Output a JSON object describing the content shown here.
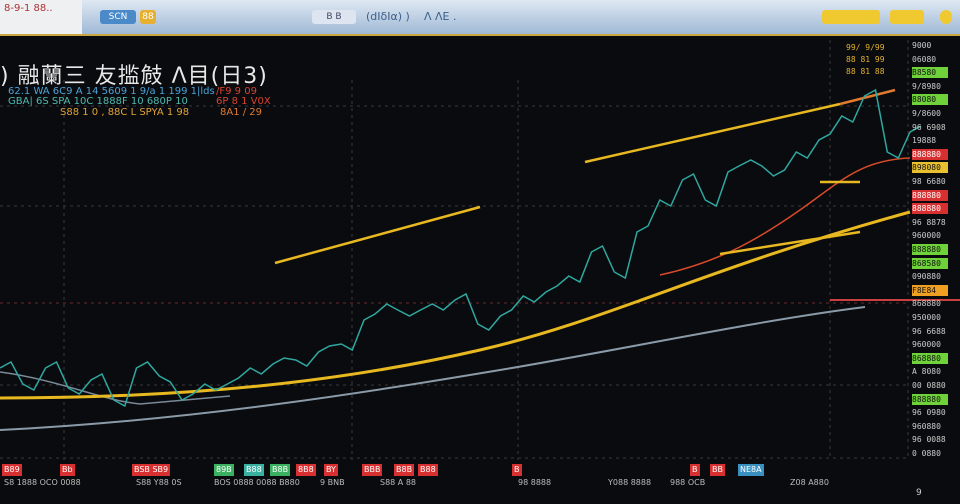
{
  "toolbar": {
    "corner_text": "8-9-1 88..",
    "items": [
      "SCN",
      "88",
      "B B",
      "(dΙδΙα) )",
      "Λ ΛΕ ."
    ],
    "buttons": [
      "",
      ""
    ]
  },
  "header": {
    "title": ") 融蘭三 友㨫㩻 Λ目(日3)",
    "sub_lines": [
      {
        "text": "62.1 WA 6C9 A 14 5609 1  9/a 1 199 1|lds",
        "color": "#4aa3d8"
      },
      {
        "text": "GBA| 6S  SPA 10C 1888F 10 680P 10",
        "color": "#4fb9b0"
      },
      {
        "text": "S88 1 0 ,  88C L SPYA 1 98",
        "color": "#e0a23a"
      }
    ],
    "sub_right": [
      {
        "text": "/F9 9 09",
        "color": "#d9432f"
      },
      {
        "text": "6P 8 1 V0X",
        "color": "#d9432f"
      },
      {
        "text": "8A1 / 29",
        "color": "#e07a30"
      }
    ]
  },
  "right_panel": {
    "labels": [
      {
        "text": "99/ 9/99",
        "color": "#e0b030",
        "bg": ""
      },
      {
        "text": "88 81 99",
        "color": "#e0b030",
        "bg": ""
      },
      {
        "text": "88 81 88",
        "color": "#e0b030",
        "bg": ""
      },
      {
        "text": "9000",
        "color": "#ccc",
        "bg": ""
      },
      {
        "text": "06080",
        "color": "#ccc",
        "bg": ""
      },
      {
        "text": "B8580",
        "color": "#111",
        "bg": "#6fd23a"
      },
      {
        "text": "9/8980",
        "color": "#ccc",
        "bg": ""
      },
      {
        "text": "88080",
        "color": "#111",
        "bg": "#6fd23a"
      },
      {
        "text": "9/8600",
        "color": "#ccc",
        "bg": ""
      },
      {
        "text": "96 6908",
        "color": "#ccc",
        "bg": ""
      },
      {
        "text": "19888",
        "color": "#ccc",
        "bg": ""
      },
      {
        "text": "888880",
        "color": "#fff",
        "bg": "#d83030"
      },
      {
        "text": "898080",
        "color": "#111",
        "bg": "#e8c030"
      },
      {
        "text": "98 6680",
        "color": "#ccc",
        "bg": ""
      },
      {
        "text": "888880",
        "color": "#fff",
        "bg": "#d83030"
      },
      {
        "text": "888880",
        "color": "#fff",
        "bg": "#d83030"
      },
      {
        "text": "96 8878",
        "color": "#ccc",
        "bg": ""
      },
      {
        "text": "960000",
        "color": "#ccc",
        "bg": ""
      },
      {
        "text": "888880",
        "color": "#111",
        "bg": "#6fd23a"
      },
      {
        "text": "868580",
        "color": "#111",
        "bg": "#6fd23a"
      },
      {
        "text": "090880",
        "color": "#ccc",
        "bg": ""
      },
      {
        "text": "F8E84",
        "color": "#111",
        "bg": "#f0a020"
      },
      {
        "text": "868880",
        "color": "#ccc",
        "bg": ""
      },
      {
        "text": "950000",
        "color": "#ccc",
        "bg": ""
      },
      {
        "text": "96 6688",
        "color": "#ccc",
        "bg": ""
      },
      {
        "text": "960000",
        "color": "#ccc",
        "bg": ""
      },
      {
        "text": "868880",
        "color": "#111",
        "bg": "#6fd23a"
      },
      {
        "text": "A 8080",
        "color": "#ccc",
        "bg": ""
      },
      {
        "text": "00 0880",
        "color": "#ccc",
        "bg": ""
      },
      {
        "text": "888880",
        "color": "#111",
        "bg": "#6fd23a"
      },
      {
        "text": "96 0980",
        "color": "#ccc",
        "bg": ""
      },
      {
        "text": "960880",
        "color": "#ccc",
        "bg": ""
      },
      {
        "text": "96 0088",
        "color": "#ccc",
        "bg": ""
      },
      {
        "text": "0 0880",
        "color": "#ccc",
        "bg": ""
      }
    ]
  },
  "bottom": {
    "tags": [
      {
        "text": "B89",
        "color": "#d83030"
      },
      {
        "text": "Bb",
        "color": "#d83030"
      },
      {
        "text": "BSB SB9",
        "color": "#d83030"
      },
      {
        "text": "89B",
        "color": "#3ab060"
      },
      {
        "text": "B88",
        "color": "#3ab0a0"
      },
      {
        "text": "B8B",
        "color": "#3ab060"
      },
      {
        "text": "8B8",
        "color": "#d83030"
      },
      {
        "text": "BY",
        "color": "#d83030"
      },
      {
        "text": "BBB",
        "color": "#d83030"
      },
      {
        "text": "B8B",
        "color": "#d83030"
      },
      {
        "text": "B88",
        "color": "#d83030"
      },
      {
        "text": "B",
        "color": "#d83030"
      },
      {
        "text": "B",
        "color": "#d83030"
      },
      {
        "text": "BB",
        "color": "#d83030"
      },
      {
        "text": "NE8A",
        "color": "#3a90c0"
      }
    ],
    "labels": [
      "S8 1888 OCO 0088",
      "S88  Y88 0S",
      "BOS  0888  0088  B880",
      "9 BNB",
      "S88  A 88",
      "98 8888",
      "Y088 8888",
      "988 OCB",
      "Z08 A880"
    ],
    "page": "9"
  },
  "colors": {
    "price": "#2fa8a0",
    "ma_yellow": "#e8b820",
    "ma_red": "#d84a2a",
    "ma_gray": "#8a9aa8",
    "grid": "#3a3a3a",
    "background": "#0a0b0e"
  },
  "chart_data": {
    "type": "line",
    "series": [
      {
        "values": [
          28,
          24,
          28,
          23,
          25,
          20,
          28,
          26,
          20,
          24,
          24,
          28,
          29,
          30,
          32,
          34,
          40,
          44,
          41,
          44,
          45,
          39,
          41,
          46,
          47,
          51,
          57,
          52,
          62,
          70,
          75,
          70,
          77,
          80,
          76,
          82,
          85,
          91,
          96,
          82,
          87
        ]
      }
    ]
  }
}
